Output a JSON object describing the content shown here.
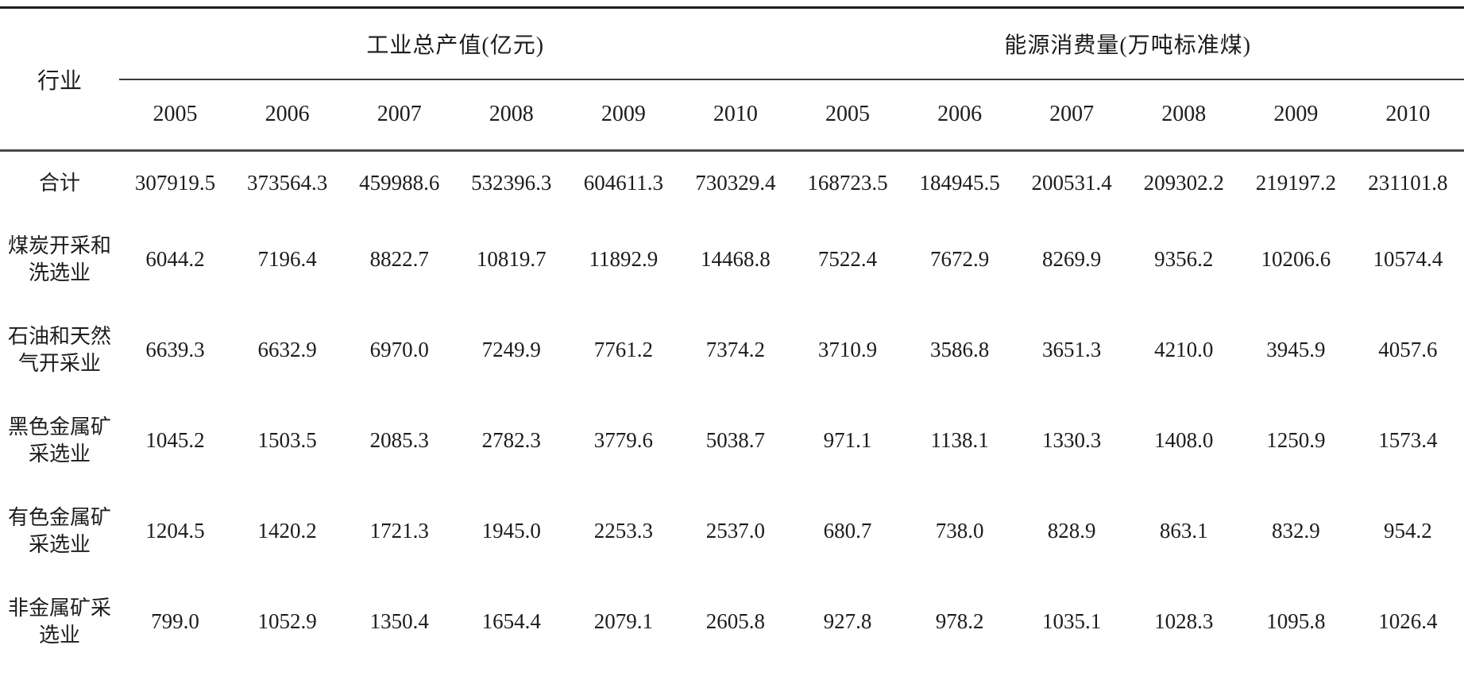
{
  "table": {
    "industry_header": "行业",
    "group_headers": [
      {
        "label": "工业总产值(亿元)"
      },
      {
        "label": "能源消费量(万吨标准煤)"
      }
    ],
    "years": [
      "2005",
      "2006",
      "2007",
      "2008",
      "2009",
      "2010",
      "2005",
      "2006",
      "2007",
      "2008",
      "2009",
      "2010"
    ],
    "rows": [
      {
        "label": "合计",
        "values": [
          "307919.5",
          "373564.3",
          "459988.6",
          "532396.3",
          "604611.3",
          "730329.4",
          "168723.5",
          "184945.5",
          "200531.4",
          "209302.2",
          "219197.2",
          "231101.8"
        ]
      },
      {
        "label": "煤炭开采和洗选业",
        "values": [
          "6044.2",
          "7196.4",
          "8822.7",
          "10819.7",
          "11892.9",
          "14468.8",
          "7522.4",
          "7672.9",
          "8269.9",
          "9356.2",
          "10206.6",
          "10574.4"
        ]
      },
      {
        "label": "石油和天然气开采业",
        "values": [
          "6639.3",
          "6632.9",
          "6970.0",
          "7249.9",
          "7761.2",
          "7374.2",
          "3710.9",
          "3586.8",
          "3651.3",
          "4210.0",
          "3945.9",
          "4057.6"
        ]
      },
      {
        "label": "黑色金属矿采选业",
        "values": [
          "1045.2",
          "1503.5",
          "2085.3",
          "2782.3",
          "3779.6",
          "5038.7",
          "971.1",
          "1138.1",
          "1330.3",
          "1408.0",
          "1250.9",
          "1573.4"
        ]
      },
      {
        "label": "有色金属矿采选业",
        "values": [
          "1204.5",
          "1420.2",
          "1721.3",
          "1945.0",
          "2253.3",
          "2537.0",
          "680.7",
          "738.0",
          "828.9",
          "863.1",
          "832.9",
          "954.2"
        ]
      },
      {
        "label": "非金属矿采选业",
        "values": [
          "799.0",
          "1052.9",
          "1350.4",
          "1654.4",
          "2079.1",
          "2605.8",
          "927.8",
          "978.2",
          "1035.1",
          "1028.3",
          "1095.8",
          "1026.4"
        ]
      }
    ]
  }
}
